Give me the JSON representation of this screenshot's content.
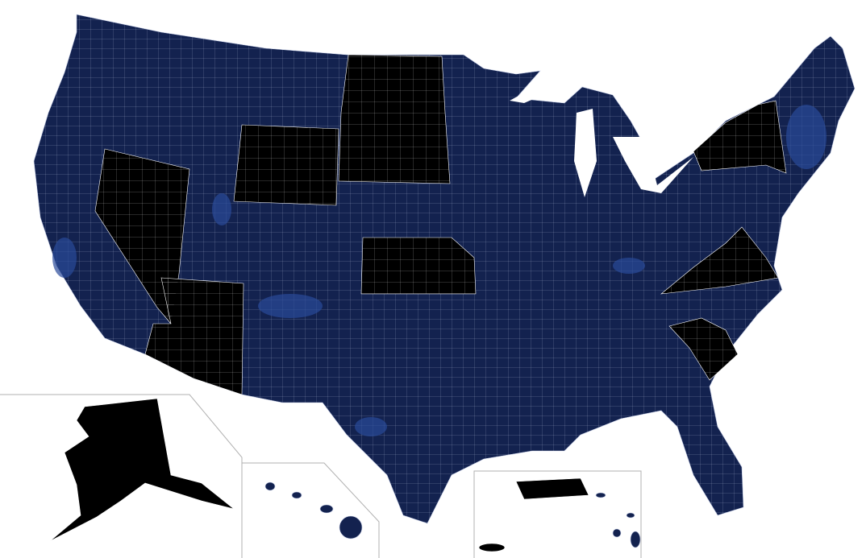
{
  "map": {
    "colors": {
      "background": "#ffffff",
      "base_fill": "#13224f",
      "light_fill": "#2a4a9a",
      "highlight_fill": "#000000",
      "border": "#c8d0e8",
      "inset_border": "#b0b0b0"
    }
  }
}
